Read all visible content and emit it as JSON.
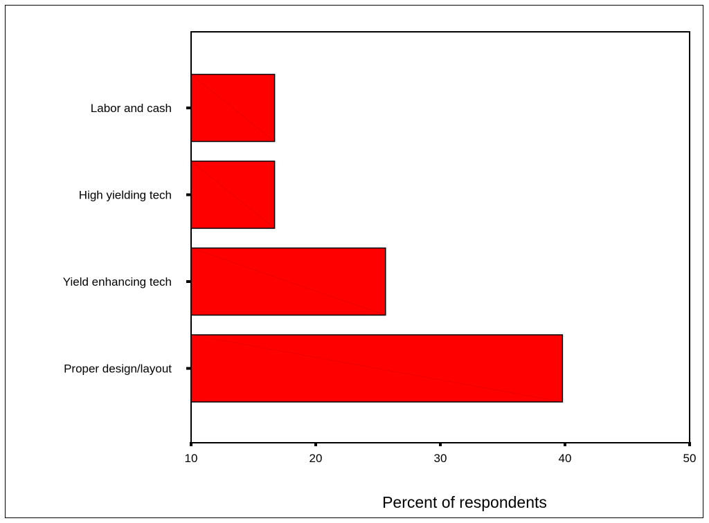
{
  "chart_data": {
    "type": "bar",
    "orientation": "horizontal",
    "categories": [
      "Labor and cash",
      "High yielding tech",
      "Yield enhancing tech",
      "Proper design/layout"
    ],
    "values": [
      16.7,
      16.7,
      25.6,
      39.8
    ],
    "xlabel": "Percent of respondents",
    "ylabel": "",
    "xlim": [
      10,
      50
    ],
    "xticks": [
      10,
      20,
      30,
      40,
      50
    ],
    "grid": false,
    "legend": "none",
    "bar_color": "#ff0000",
    "bar_edge_color": "#000000"
  }
}
